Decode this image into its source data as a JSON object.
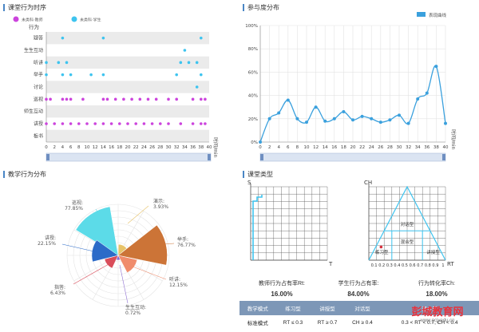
{
  "panels": {
    "timeline": {
      "title": "课堂行为时序",
      "legend": [
        "未类科·教师",
        "未类科·学生"
      ],
      "y_axis_title": "行为",
      "x_axis_title": "时间/min",
      "rows": [
        "疑答",
        "生生互动",
        "听讲",
        "举手",
        "讨论",
        "巡视",
        "师生互动",
        "讲授",
        "板书"
      ],
      "x_ticks": [
        "0",
        "2",
        "4",
        "6",
        "8",
        "10",
        "12",
        "14",
        "16",
        "18",
        "20",
        "22",
        "24",
        "26",
        "28",
        "30",
        "32",
        "34",
        "36",
        "38",
        "40"
      ]
    },
    "participation": {
      "title": "参与度分布",
      "legend": "表现曲线",
      "x_axis_title": "时间/min",
      "y_ticks": [
        "0%",
        "20%",
        "40%",
        "60%",
        "80%",
        "100%"
      ],
      "x_ticks": [
        "0",
        "2",
        "4",
        "6",
        "8",
        "10",
        "12",
        "14",
        "16",
        "18",
        "20",
        "22",
        "24",
        "26",
        "28",
        "30",
        "32",
        "34",
        "36",
        "38",
        "40"
      ]
    },
    "teaching": {
      "title": "教学行为分布",
      "labels": [
        {
          "name": "巡视:",
          "value": "77.85%"
        },
        {
          "name": "演示:",
          "value": "3.93%"
        },
        {
          "name": "讲授:",
          "value": "22.15%"
        },
        {
          "name": "举手:",
          "value": "76.77%"
        },
        {
          "name": "指答:",
          "value": "6.43%"
        },
        {
          "name": "听讲:",
          "value": "12.15%"
        },
        {
          "name": "生生互动:",
          "value": "0.72%"
        }
      ]
    },
    "classtype": {
      "title": "课堂类型",
      "st_axis": {
        "s": "S",
        "t": "T"
      },
      "rtch_axis": {
        "ch": "CH",
        "rt": "RT"
      },
      "rtch_ticks": [
        "0.1",
        "0.2",
        "0.3",
        "0.4",
        "0.5",
        "0.6",
        "0.7",
        "0.8",
        "0.9",
        "1"
      ],
      "regions": [
        "对话型",
        "混合型",
        "练习型",
        "讲授型"
      ]
    }
  },
  "stats": [
    {
      "label": "教师行为占有率Rt:",
      "value": "16.00%"
    },
    {
      "label": "学生行为占有率:",
      "value": "84.00%"
    },
    {
      "label": "行为转化率Ch:",
      "value": "18.00%"
    }
  ],
  "modes_table": {
    "headers": [
      "教学模式",
      "练习型",
      "讲授型",
      "对话型",
      "混合型"
    ],
    "row": [
      "标准模式",
      "RT ≤ 0.3",
      "RT ≥ 0.7",
      "CH ≥ 0.4",
      "0.3 < RT < 0.7, CH < 0.4"
    ]
  },
  "watermark": {
    "main": "彭城教育网",
    "sub": "www.pcjyedu.cn"
  },
  "colors": {
    "teacher": "#cc44dd",
    "student": "#3ec4ef",
    "line": "#3aa0dd",
    "accent": "#4a86c5"
  },
  "chart_data": [
    {
      "type": "scatter",
      "title": "课堂行为时序",
      "xlabel": "时间/min",
      "ylabel": "行为",
      "xlim": [
        0,
        40
      ],
      "categories": [
        "疑答",
        "生生互动",
        "听讲",
        "举手",
        "讨论",
        "巡视",
        "师生互动",
        "讲授",
        "板书"
      ],
      "series": [
        {
          "name": "未类科·教师",
          "points": [
            {
              "x": 0,
              "y": "巡视"
            },
            {
              "x": 1,
              "y": "巡视"
            },
            {
              "x": 4,
              "y": "巡视"
            },
            {
              "x": 5,
              "y": "巡视"
            },
            {
              "x": 6,
              "y": "巡视"
            },
            {
              "x": 9,
              "y": "巡视"
            },
            {
              "x": 14,
              "y": "巡视"
            },
            {
              "x": 15,
              "y": "巡视"
            },
            {
              "x": 17,
              "y": "巡视"
            },
            {
              "x": 19,
              "y": "巡视"
            },
            {
              "x": 21,
              "y": "巡视"
            },
            {
              "x": 23,
              "y": "巡视"
            },
            {
              "x": 25,
              "y": "巡视"
            },
            {
              "x": 27,
              "y": "巡视"
            },
            {
              "x": 30,
              "y": "巡视"
            },
            {
              "x": 32,
              "y": "巡视"
            },
            {
              "x": 36,
              "y": "巡视"
            },
            {
              "x": 38,
              "y": "巡视"
            },
            {
              "x": 39,
              "y": "巡视"
            },
            {
              "x": 0,
              "y": "讲授"
            },
            {
              "x": 2,
              "y": "讲授"
            },
            {
              "x": 4,
              "y": "讲授"
            },
            {
              "x": 6,
              "y": "讲授"
            },
            {
              "x": 8,
              "y": "讲授"
            },
            {
              "x": 10,
              "y": "讲授"
            },
            {
              "x": 12,
              "y": "讲授"
            },
            {
              "x": 14,
              "y": "讲授"
            },
            {
              "x": 16,
              "y": "讲授"
            },
            {
              "x": 18,
              "y": "讲授"
            },
            {
              "x": 20,
              "y": "讲授"
            },
            {
              "x": 22,
              "y": "讲授"
            },
            {
              "x": 24,
              "y": "讲授"
            },
            {
              "x": 26,
              "y": "讲授"
            },
            {
              "x": 28,
              "y": "讲授"
            },
            {
              "x": 30,
              "y": "讲授"
            },
            {
              "x": 33,
              "y": "讲授"
            },
            {
              "x": 36,
              "y": "讲授"
            },
            {
              "x": 38,
              "y": "讲授"
            },
            {
              "x": 39,
              "y": "讲授"
            }
          ]
        },
        {
          "name": "未类科·学生",
          "points": [
            {
              "x": 4,
              "y": "疑答"
            },
            {
              "x": 14,
              "y": "疑答"
            },
            {
              "x": 38,
              "y": "疑答"
            },
            {
              "x": 34,
              "y": "生生互动"
            },
            {
              "x": 0,
              "y": "听讲"
            },
            {
              "x": 3,
              "y": "听讲"
            },
            {
              "x": 5,
              "y": "听讲"
            },
            {
              "x": 33,
              "y": "听讲"
            },
            {
              "x": 35,
              "y": "听讲"
            },
            {
              "x": 37,
              "y": "听讲"
            },
            {
              "x": 0,
              "y": "举手"
            },
            {
              "x": 4,
              "y": "举手"
            },
            {
              "x": 6,
              "y": "举手"
            },
            {
              "x": 11,
              "y": "举手"
            },
            {
              "x": 14,
              "y": "举手"
            },
            {
              "x": 32,
              "y": "举手"
            },
            {
              "x": 38,
              "y": "举手"
            },
            {
              "x": 37,
              "y": "讨论"
            }
          ]
        }
      ]
    },
    {
      "type": "line",
      "title": "参与度分布",
      "xlabel": "时间/min",
      "ylabel": "",
      "xlim": [
        0,
        40
      ],
      "ylim": [
        0,
        100
      ],
      "series": [
        {
          "name": "表现曲线",
          "x": [
            0,
            2,
            4,
            6,
            8,
            10,
            12,
            14,
            16,
            18,
            20,
            22,
            24,
            26,
            28,
            30,
            32,
            34,
            36,
            38,
            40
          ],
          "values": [
            0,
            20,
            25,
            36,
            20,
            17,
            30,
            18,
            20,
            26,
            19,
            22,
            20,
            17,
            19,
            23,
            16,
            37,
            42,
            65,
            16
          ]
        }
      ]
    },
    {
      "type": "pie",
      "title": "教学行为分布",
      "categories": [
        "巡视",
        "演示",
        "举手",
        "听讲",
        "生生互动",
        "指答",
        "讲授"
      ],
      "values": [
        77.85,
        3.93,
        76.77,
        12.15,
        0.72,
        6.43,
        22.15
      ]
    },
    {
      "type": "scatter",
      "title": "课堂类型",
      "xlabel": "RT",
      "ylabel": "CH",
      "xlim": [
        0,
        1
      ],
      "ylim": [
        0,
        1
      ],
      "points": [
        {
          "x": 0.16,
          "y": 0.18
        }
      ]
    }
  ]
}
